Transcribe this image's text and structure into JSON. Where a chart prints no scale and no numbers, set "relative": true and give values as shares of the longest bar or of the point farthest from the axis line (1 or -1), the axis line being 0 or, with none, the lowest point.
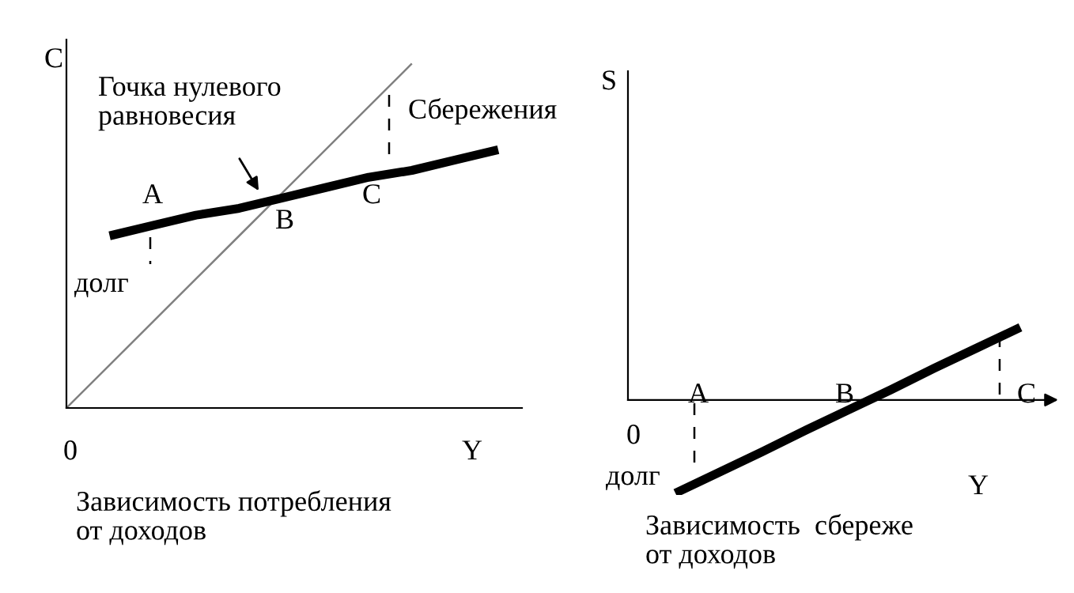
{
  "chart_data": [
    {
      "type": "line",
      "relative": true,
      "ylabel": "C",
      "xlabel": "Y",
      "marker": "none",
      "line_style": "solid",
      "categories": [
        null,
        null,
        null,
        null,
        null,
        null,
        null,
        null,
        null,
        null,
        null
      ],
      "series": [
        {
          "color": "#808080",
          "values": [
            0,
            0.125,
            0.25,
            0.375,
            0.5,
            0.625,
            0.75,
            0.875,
            1.0,
            null,
            null
          ]
        },
        {
          "color": "#000000",
          "values": [
            null,
            0.5,
            0.53,
            0.56,
            0.58,
            0.61,
            0.64,
            0.67,
            0.69,
            0.72,
            0.75
          ]
        }
      ],
      "annotations": [
        "0",
        "Гочка нулевого\nравновесия",
        "Сбережения",
        "A",
        "B",
        "C",
        "долг",
        "Зависимость потребления\nот доходов"
      ]
    },
    {
      "type": "line",
      "relative": true,
      "ylabel": "S",
      "xlabel": "Y",
      "marker": "none",
      "line_style": "solid",
      "categories": [
        null,
        null,
        null,
        null,
        null,
        null,
        null,
        null,
        null
      ],
      "series": [
        {
          "color": "#000000",
          "values": [
            -1,
            -0.78,
            -0.56,
            -0.33,
            -0.11,
            0.11,
            0.34,
            0.56,
            0.78
          ]
        }
      ],
      "annotations": [
        "0",
        "A",
        "B",
        "C",
        "долг",
        "Зависимость  сбереже\nот доходов"
      ]
    }
  ]
}
